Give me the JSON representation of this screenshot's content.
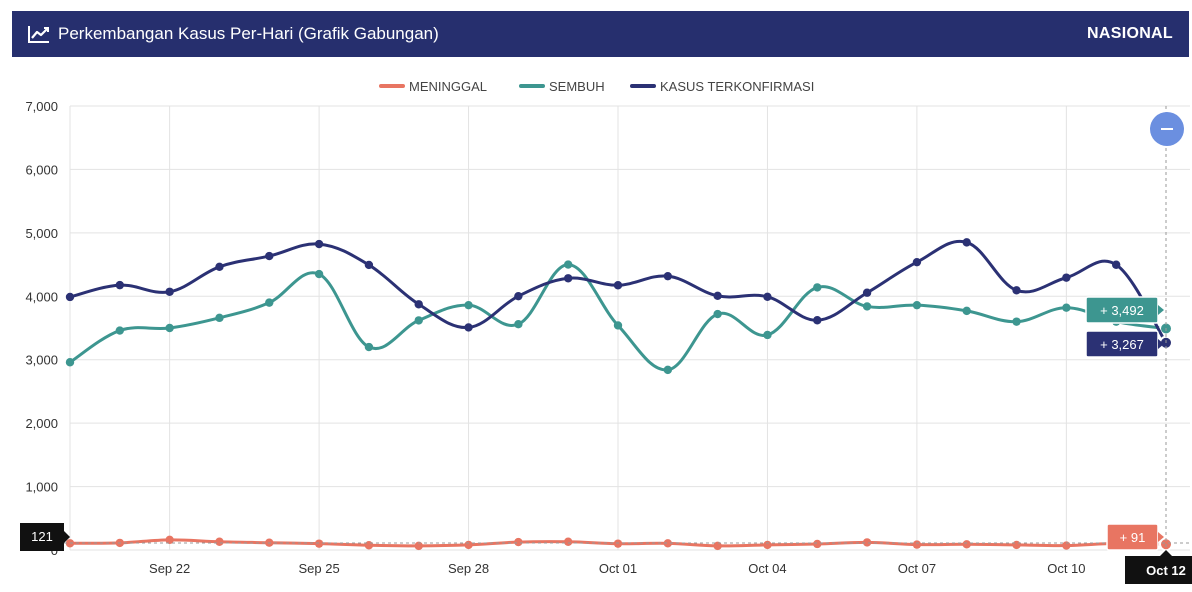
{
  "header": {
    "title": "Perkembangan Kasus Per-Hari (Grafik Gabungan)",
    "region": "NASIONAL",
    "icon": "line-chart-icon"
  },
  "colors": {
    "header_bg": "#262f6e",
    "meninggal": "#e87562",
    "sembuh": "#3d9690",
    "kasus": "#2b3174",
    "zoom_button": "#6b8fe0",
    "crosshair_label": "#111111"
  },
  "zoom_button": {
    "symbol": "−",
    "icon": "zoom-out-icon"
  },
  "chart_data": {
    "type": "line",
    "title": "Perkembangan Kasus Per-Hari (Grafik Gabungan)",
    "xlabel": "",
    "ylabel": "",
    "ylim": [
      0,
      7000
    ],
    "yticks": [
      0,
      1000,
      2000,
      3000,
      4000,
      5000,
      6000,
      7000
    ],
    "ytick_labels": [
      "0",
      "1,000",
      "2,000",
      "3,000",
      "4,000",
      "5,000",
      "6,000",
      "7,000"
    ],
    "grid": true,
    "legend_position": "top-center",
    "x_dates": [
      "Sep 20",
      "Sep 21",
      "Sep 22",
      "Sep 23",
      "Sep 24",
      "Sep 25",
      "Sep 26",
      "Sep 27",
      "Sep 28",
      "Sep 29",
      "Sep 30",
      "Oct 01",
      "Oct 02",
      "Oct 03",
      "Oct 04",
      "Oct 05",
      "Oct 06",
      "Oct 07",
      "Oct 08",
      "Oct 09",
      "Oct 10",
      "Oct 11",
      "Oct 12"
    ],
    "xtick_labels": [
      "Sep 22",
      "Sep 25",
      "Sep 28",
      "Oct 01",
      "Oct 04",
      "Oct 07",
      "Oct 10"
    ],
    "series": [
      {
        "name": "MENINGGAL",
        "color": "#e87562",
        "values": [
          106,
          112,
          160,
          130,
          115,
          100,
          75,
          65,
          80,
          125,
          130,
          100,
          105,
          65,
          80,
          95,
          120,
          85,
          90,
          80,
          70,
          105,
          91
        ]
      },
      {
        "name": "SEMBUH",
        "color": "#3d9690",
        "values": [
          2960,
          3460,
          3500,
          3660,
          3900,
          4350,
          3200,
          3620,
          3860,
          3560,
          4500,
          3540,
          2840,
          3720,
          3390,
          4140,
          3840,
          3860,
          3770,
          3600,
          3820,
          3600,
          3492
        ]
      },
      {
        "name": "KASUS TERKONFIRMASI",
        "color": "#2b3174",
        "values": [
          3989,
          4176,
          4071,
          4465,
          4634,
          4823,
          4494,
          3874,
          3509,
          4002,
          4284,
          4174,
          4317,
          4007,
          3992,
          3622,
          4056,
          4538,
          4850,
          4094,
          4294,
          4497,
          3267
        ]
      }
    ],
    "crosshair": {
      "x_label": "Oct 12",
      "y_label": "121",
      "tooltips": [
        {
          "series": "SEMBUH",
          "text": "+ 3,492"
        },
        {
          "series": "KASUS TERKONFIRMASI",
          "text": "+ 3,267"
        },
        {
          "series": "MENINGGAL",
          "text": "+ 91"
        }
      ]
    }
  }
}
